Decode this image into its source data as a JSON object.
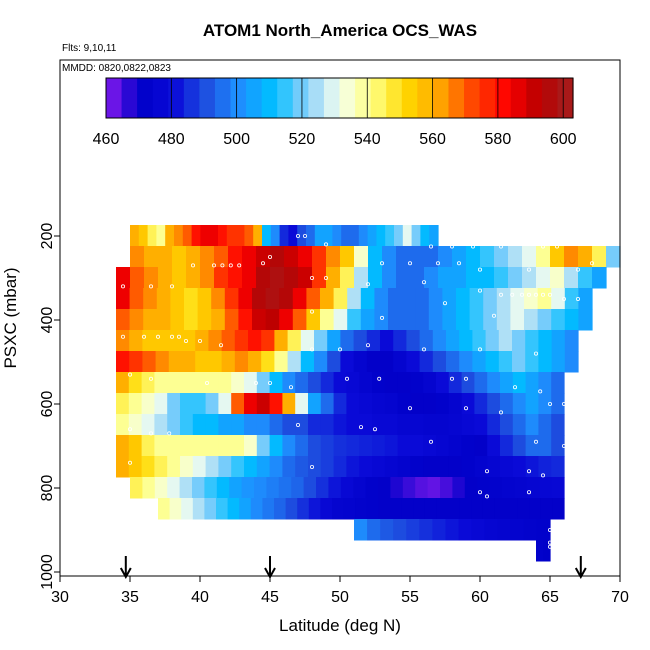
{
  "chart_data": {
    "type": "heatmap",
    "title": "ATOM1 North_America OCS_WAS",
    "note_flights": "Flts: 9,10,11",
    "note_dates": "MMDD: 0820,0822,0823",
    "xlabel": "Latitude (deg N)",
    "ylabel": "PSXC (mbar)",
    "xlim": [
      30,
      70
    ],
    "ylim": [
      1000,
      0
    ],
    "x_ticks": [
      "30",
      "35",
      "40",
      "45",
      "50",
      "55",
      "60",
      "65",
      "70"
    ],
    "y_ticks": [
      "200",
      "400",
      "600",
      "800",
      "1000"
    ],
    "colorbar": {
      "range": [
        460,
        603
      ],
      "ticks": [
        "460",
        "480",
        "500",
        "520",
        "540",
        "560",
        "580",
        "600"
      ],
      "colors": [
        "#8b1cf0",
        "#0000c8",
        "#0a0ad8",
        "#1e50e0",
        "#1e90ff",
        "#00bfff",
        "#87cefa",
        "#f5fff0",
        "#ffff80",
        "#ffd700",
        "#ffa500",
        "#ff4500",
        "#ff0000",
        "#b80000",
        "#a52020"
      ]
    },
    "arrow_latitudes": [
      34.7,
      45,
      67.2
    ],
    "p_levels": [
      200,
      250,
      300,
      350,
      400,
      450,
      500,
      550,
      600,
      650,
      700,
      750,
      800,
      850,
      900,
      950
    ],
    "latitude_ranges": [
      [
        35,
        57
      ],
      [
        35,
        70
      ],
      [
        34,
        69
      ],
      [
        34,
        68
      ],
      [
        34,
        68
      ],
      [
        34,
        67
      ],
      [
        34,
        67
      ],
      [
        34,
        66
      ],
      [
        34,
        66
      ],
      [
        34,
        66
      ],
      [
        34,
        66
      ],
      [
        34,
        66
      ],
      [
        35,
        66
      ],
      [
        37,
        66
      ],
      [
        51,
        65
      ],
      [
        64,
        65
      ]
    ],
    "OCS_values": [
      [
        560,
        555,
        545,
        540,
        560,
        565,
        570,
        580,
        585,
        585,
        580,
        575,
        575,
        570,
        560,
        510,
        500,
        485,
        480,
        490,
        495,
        505,
        505,
        500,
        495,
        495,
        500,
        505,
        510,
        515,
        520,
        530,
        520,
        510,
        505
      ],
      [
        565,
        560,
        560,
        555,
        560,
        565,
        570,
        580,
        585,
        590,
        595,
        590,
        585,
        575,
        565,
        555,
        535,
        510,
        500,
        495,
        495,
        495,
        500,
        505,
        510,
        515,
        520,
        525,
        530,
        540,
        555,
        565,
        560,
        545,
        520
      ],
      [
        585,
        570,
        565,
        560,
        555,
        560,
        565,
        575,
        580,
        585,
        595,
        598,
        595,
        590,
        575,
        560,
        545,
        525,
        510,
        500,
        495,
        495,
        500,
        505,
        505,
        510,
        510,
        515,
        520,
        525,
        530,
        535,
        525,
        515,
        505
      ],
      [
        585,
        570,
        565,
        560,
        555,
        550,
        555,
        565,
        575,
        585,
        595,
        598,
        595,
        585,
        570,
        560,
        545,
        525,
        510,
        500,
        495,
        495,
        495,
        500,
        505,
        510,
        515,
        520,
        525,
        530,
        535,
        540,
        530,
        515,
        505
      ],
      [
        570,
        565,
        560,
        560,
        555,
        550,
        555,
        560,
        570,
        580,
        590,
        592,
        585,
        570,
        555,
        540,
        530,
        515,
        505,
        500,
        495,
        495,
        495,
        500,
        505,
        510,
        515,
        520,
        525,
        530,
        525,
        520,
        515,
        510,
        505
      ],
      [
        565,
        560,
        555,
        555,
        555,
        555,
        560,
        565,
        570,
        575,
        580,
        575,
        560,
        545,
        530,
        520,
        505,
        495,
        490,
        485,
        480,
        485,
        490,
        495,
        500,
        505,
        510,
        515,
        520,
        525,
        520,
        515,
        510,
        505,
        500
      ],
      [
        580,
        575,
        570,
        565,
        560,
        560,
        555,
        555,
        560,
        565,
        560,
        550,
        540,
        525,
        510,
        500,
        490,
        480,
        475,
        470,
        470,
        475,
        480,
        485,
        490,
        495,
        500,
        505,
        510,
        515,
        520,
        515,
        510,
        505,
        500
      ],
      [
        560,
        550,
        545,
        540,
        540,
        540,
        540,
        540,
        540,
        535,
        530,
        520,
        510,
        500,
        495,
        490,
        485,
        480,
        478,
        475,
        472,
        470,
        470,
        472,
        475,
        480,
        485,
        490,
        495,
        500,
        505,
        510,
        505,
        500,
        495
      ],
      [
        545,
        540,
        535,
        530,
        520,
        515,
        515,
        520,
        530,
        570,
        585,
        590,
        580,
        560,
        530,
        505,
        495,
        485,
        480,
        478,
        476,
        475,
        472,
        470,
        470,
        472,
        475,
        480,
        485,
        490,
        495,
        500,
        505,
        500,
        495
      ],
      [
        540,
        535,
        530,
        525,
        520,
        515,
        510,
        510,
        505,
        505,
        500,
        500,
        495,
        490,
        490,
        485,
        485,
        482,
        480,
        480,
        478,
        478,
        476,
        476,
        475,
        475,
        476,
        478,
        480,
        485,
        490,
        495,
        500,
        495,
        490
      ],
      [
        560,
        555,
        545,
        540,
        540,
        540,
        540,
        540,
        540,
        540,
        535,
        520,
        510,
        500,
        495,
        490,
        488,
        486,
        485,
        484,
        483,
        482,
        480,
        480,
        478,
        476,
        474,
        472,
        470,
        480,
        485,
        490,
        495,
        495,
        490
      ],
      [
        560,
        555,
        550,
        545,
        540,
        535,
        530,
        525,
        520,
        515,
        510,
        505,
        500,
        495,
        492,
        490,
        488,
        485,
        482,
        480,
        478,
        476,
        474,
        472,
        470,
        470,
        470,
        472,
        474,
        476,
        478,
        480,
        482,
        484,
        485
      ],
      [
        545,
        540,
        535,
        530,
        525,
        520,
        515,
        510,
        505,
        502,
        500,
        498,
        496,
        494,
        490,
        486,
        482,
        478,
        475,
        472,
        470,
        468,
        466,
        464,
        463,
        465,
        468,
        470,
        472,
        473,
        474,
        475,
        476,
        477,
        478
      ],
      [
        540,
        535,
        530,
        525,
        520,
        515,
        510,
        505,
        500,
        497,
        494,
        490,
        486,
        482,
        478,
        475,
        474,
        473,
        472,
        470,
        470,
        470,
        470,
        470,
        470,
        470,
        470,
        470,
        470,
        470,
        470,
        470,
        470,
        470,
        470
      ],
      [
        500,
        495,
        492,
        490,
        488,
        486,
        484,
        482,
        480,
        478,
        476,
        475,
        474,
        473,
        472
      ],
      [
        472,
        471
      ]
    ],
    "sample_points": [
      [
        47,
        200
      ],
      [
        47.5,
        200
      ],
      [
        49,
        220
      ],
      [
        56.5,
        225
      ],
      [
        58,
        225
      ],
      [
        59.5,
        225
      ],
      [
        61.5,
        225
      ],
      [
        64.5,
        225
      ],
      [
        65.5,
        225
      ],
      [
        34.5,
        250
      ],
      [
        39.5,
        270
      ],
      [
        41,
        270
      ],
      [
        41.6,
        270
      ],
      [
        42.2,
        270
      ],
      [
        42.8,
        270
      ],
      [
        45,
        250
      ],
      [
        44.5,
        265
      ],
      [
        48,
        300
      ],
      [
        49,
        300
      ],
      [
        53,
        265
      ],
      [
        55,
        265
      ],
      [
        57,
        265
      ],
      [
        58.5,
        265
      ],
      [
        60,
        280
      ],
      [
        63.5,
        280
      ],
      [
        67,
        280
      ],
      [
        68,
        265
      ],
      [
        34.5,
        320
      ],
      [
        36.5,
        320
      ],
      [
        38,
        320
      ],
      [
        52,
        315
      ],
      [
        56,
        310
      ],
      [
        60,
        330
      ],
      [
        61.5,
        340
      ],
      [
        62.3,
        340
      ],
      [
        63,
        340
      ],
      [
        63.5,
        340
      ],
      [
        64,
        340
      ],
      [
        64.5,
        340
      ],
      [
        65,
        340
      ],
      [
        66,
        350
      ],
      [
        67,
        350
      ],
      [
        48,
        380
      ],
      [
        53,
        395
      ],
      [
        57.5,
        360
      ],
      [
        61,
        390
      ],
      [
        34.5,
        440
      ],
      [
        36,
        440
      ],
      [
        37,
        440
      ],
      [
        38,
        440
      ],
      [
        38.5,
        440
      ],
      [
        39,
        450
      ],
      [
        40,
        450
      ],
      [
        41.5,
        460
      ],
      [
        48,
        470
      ],
      [
        50,
        470
      ],
      [
        52,
        460
      ],
      [
        56,
        470
      ],
      [
        60,
        470
      ],
      [
        64,
        480
      ],
      [
        35,
        530
      ],
      [
        36.5,
        540
      ],
      [
        40.5,
        550
      ],
      [
        44,
        550
      ],
      [
        45,
        550
      ],
      [
        46.5,
        560
      ],
      [
        50.5,
        540
      ],
      [
        52.8,
        540
      ],
      [
        58,
        540
      ],
      [
        59,
        540
      ],
      [
        62.5,
        560
      ],
      [
        64.3,
        570
      ],
      [
        65,
        600
      ],
      [
        66,
        600
      ],
      [
        67,
        620
      ],
      [
        55,
        610
      ],
      [
        59,
        610
      ],
      [
        61.5,
        620
      ],
      [
        35,
        660
      ],
      [
        36.5,
        670
      ],
      [
        37.8,
        670
      ],
      [
        47,
        650
      ],
      [
        51.5,
        655
      ],
      [
        52.5,
        660
      ],
      [
        56.5,
        690
      ],
      [
        64,
        690
      ],
      [
        66,
        700
      ],
      [
        67.5,
        710
      ],
      [
        35,
        740
      ],
      [
        60.5,
        760
      ],
      [
        63.5,
        760
      ],
      [
        48,
        750
      ],
      [
        64.5,
        770
      ],
      [
        60,
        810
      ],
      [
        60.5,
        820
      ],
      [
        63.5,
        810
      ],
      [
        65,
        900
      ],
      [
        65,
        930
      ],
      [
        65,
        940
      ]
    ]
  }
}
